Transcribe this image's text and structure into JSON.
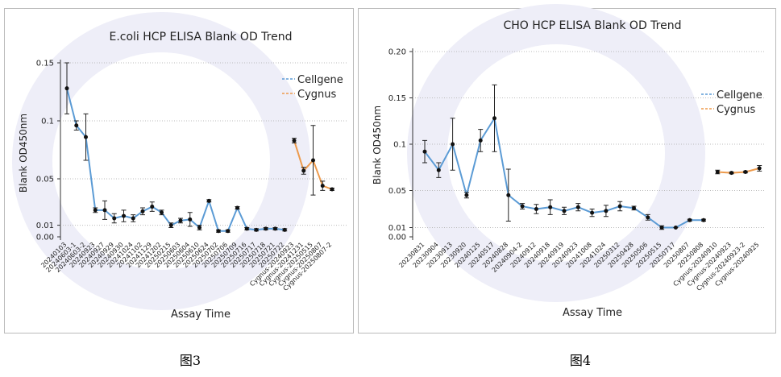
{
  "chart_data": [
    {
      "type": "line",
      "title": "E.coli HCP ELISA Blank OD Trend",
      "x_label": "Assay Time",
      "y_label": "Blank OD450nm",
      "categories": [
        "20240103",
        "20240603-1",
        "20240603-2",
        "20240923",
        "20240927",
        "20240929",
        "20240930",
        "20241024",
        "20241102",
        "20241129",
        "20241202",
        "20250215",
        "20250603",
        "20250604",
        "20250610",
        "20250624",
        "20250702",
        "20250706",
        "20250709",
        "20250716",
        "20250717",
        "20250718",
        "20250721",
        "20250722",
        "Cygnus-20240923",
        "Cygnus-20241231",
        "Cygnus-20250515",
        "Cygnus-20250807",
        "Cygnus-20250807-2"
      ],
      "series": [
        {
          "name": "Cellgene",
          "color": "#5b9bd5",
          "values": [
            0.128,
            0.096,
            0.086,
            0.023,
            0.023,
            0.016,
            0.018,
            0.016,
            0.022,
            0.026,
            0.021,
            0.01,
            0.014,
            0.015,
            0.008,
            0.031,
            0.005,
            0.005,
            0.025,
            0.007,
            0.006,
            0.007,
            0.007,
            0.006,
            null,
            null,
            null,
            null,
            null
          ],
          "errors": [
            0.022,
            0.004,
            0.02,
            0.002,
            0.008,
            0.004,
            0.005,
            0.003,
            0.003,
            0.004,
            0.002,
            0.002,
            0.002,
            0.006,
            0.002,
            0.001,
            0.001,
            0.001,
            0.001,
            0.001,
            0.001,
            0.001,
            0.001,
            0.001,
            null,
            null,
            null,
            null,
            null
          ]
        },
        {
          "name": "Cygnus",
          "color": "#ed9a4c",
          "values": [
            null,
            null,
            null,
            null,
            null,
            null,
            null,
            null,
            null,
            null,
            null,
            null,
            null,
            null,
            null,
            null,
            null,
            null,
            null,
            null,
            null,
            null,
            null,
            null,
            0.083,
            0.057,
            0.066,
            0.044,
            0.041
          ],
          "errors": [
            null,
            null,
            null,
            null,
            null,
            null,
            null,
            null,
            null,
            null,
            null,
            null,
            null,
            null,
            null,
            null,
            null,
            null,
            null,
            null,
            null,
            null,
            null,
            null,
            0.002,
            0.003,
            0.03,
            0.004,
            0.001
          ]
        }
      ],
      "ylim": [
        0,
        0.15
      ],
      "yticks": [
        {
          "value": 0,
          "label": "0.00"
        },
        0.01,
        0.05,
        0.1,
        0.15
      ],
      "grid": true,
      "legend": "upper right"
    },
    {
      "type": "line",
      "title": "CHO HCP ELISA Blank OD Trend",
      "x_label": "Assay Time",
      "y_label": "Blank OD450nm",
      "categories": [
        "20230831",
        "20230904",
        "20230913",
        "20230920",
        "20240125",
        "20240517",
        "20240828",
        "20240904-2",
        "20240912",
        "20240918",
        "20240919",
        "20240923",
        "20241008",
        "20241024",
        "20250312",
        "20250428",
        "20250506",
        "20250515",
        "20250717",
        "20250807",
        "20250808",
        "Cygnus-20240910",
        "Cygnus-20240923",
        "Cygnus-20240923-2",
        "Cygnus-20240925"
      ],
      "series": [
        {
          "name": "Cellgene",
          "color": "#5b9bd5",
          "values": [
            0.092,
            0.072,
            0.1,
            0.045,
            0.104,
            0.128,
            0.045,
            0.033,
            0.03,
            0.032,
            0.028,
            0.032,
            0.026,
            0.028,
            0.033,
            0.031,
            0.021,
            0.01,
            0.01,
            0.018,
            0.018,
            null,
            null,
            null,
            null
          ],
          "errors": [
            0.012,
            0.008,
            0.028,
            0.003,
            0.012,
            0.036,
            0.028,
            0.003,
            0.005,
            0.008,
            0.004,
            0.004,
            0.004,
            0.006,
            0.005,
            0.002,
            0.003,
            0.002,
            0,
            0.001,
            0.001,
            null,
            null,
            null,
            null
          ]
        },
        {
          "name": "Cygnus",
          "color": "#ed9a4c",
          "values": [
            null,
            null,
            null,
            null,
            null,
            null,
            null,
            null,
            null,
            null,
            null,
            null,
            null,
            null,
            null,
            null,
            null,
            null,
            null,
            null,
            null,
            0.07,
            0.069,
            0.07,
            0.074
          ],
          "errors": [
            null,
            null,
            null,
            null,
            null,
            null,
            null,
            null,
            null,
            null,
            null,
            null,
            null,
            null,
            null,
            null,
            null,
            null,
            null,
            null,
            null,
            0.002,
            0.001,
            0.001,
            0.003
          ]
        }
      ],
      "ylim": [
        0,
        0.2
      ],
      "yticks": [
        {
          "value": 0,
          "label": "0.00"
        },
        0.01,
        0.05,
        0.1,
        0.15,
        {
          "value": 0.2,
          "label": "0.20"
        }
      ],
      "grid": true,
      "legend": "upper right"
    }
  ],
  "captions": [
    "图3",
    "图4"
  ]
}
